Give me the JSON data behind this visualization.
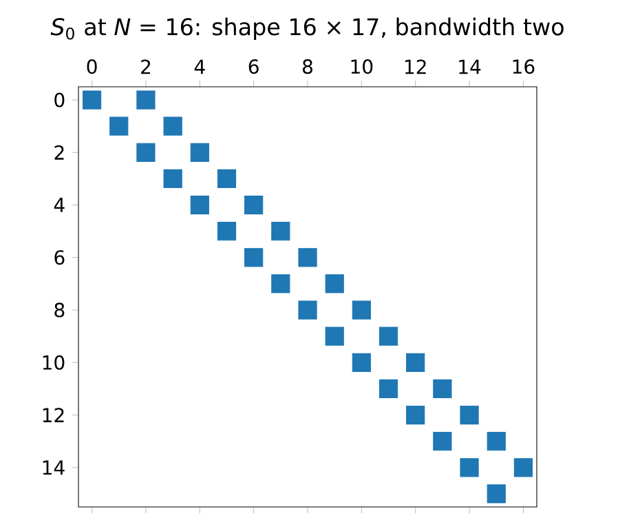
{
  "chart_data": {
    "type": "scatter",
    "title": "*S*$_{0}$ at *N* = 16: shape 16 × 17, bandwidth two",
    "color": "#1f77b4",
    "marker": "square",
    "x": [
      0,
      2,
      1,
      3,
      2,
      4,
      3,
      5,
      4,
      6,
      5,
      7,
      6,
      8,
      7,
      9,
      8,
      10,
      9,
      11,
      10,
      12,
      11,
      13,
      12,
      14,
      13,
      15,
      14,
      16,
      15
    ],
    "values": [
      0,
      0,
      1,
      1,
      2,
      2,
      3,
      3,
      4,
      4,
      5,
      5,
      6,
      6,
      7,
      7,
      8,
      8,
      9,
      9,
      10,
      10,
      11,
      11,
      12,
      12,
      13,
      13,
      14,
      14,
      15
    ],
    "xlim": [
      -0.5,
      16.5
    ],
    "ylim": [
      15.5,
      -0.5
    ],
    "xticks": [
      0,
      2,
      4,
      6,
      8,
      10,
      12,
      14,
      16
    ],
    "yticks": [
      0,
      2,
      4,
      6,
      8,
      10,
      12,
      14
    ],
    "grid": false
  }
}
